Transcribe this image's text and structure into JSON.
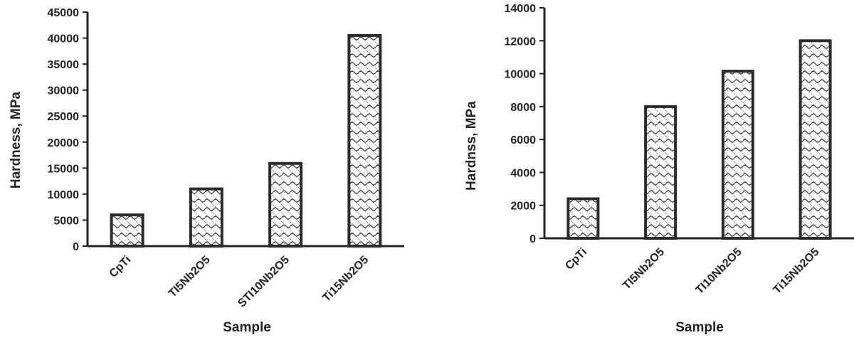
{
  "chart_data": [
    {
      "type": "bar",
      "title": "",
      "xlabel": "Sample",
      "ylabel": "Hardness, MPa",
      "categories": [
        "CpTi",
        "TI5Nb2O5",
        "STI10Nb2O5",
        "Ti15Nb2O5"
      ],
      "values": [
        6000,
        11000,
        15900,
        40500
      ],
      "ylim": [
        0,
        45000
      ],
      "yticks": [
        0,
        5000,
        10000,
        15000,
        20000,
        25000,
        30000,
        35000,
        40000,
        45000
      ],
      "grid": false,
      "legend": "none",
      "bar_fill": "hatched",
      "bar_color": "#2b2b2b"
    },
    {
      "type": "bar",
      "title": "",
      "xlabel": "Sample",
      "ylabel": "Hardnss, MPa",
      "categories": [
        "CpTi",
        "TI5Nb2O5",
        "TI10Nb2O5",
        "Ti15Nb2O5"
      ],
      "values": [
        2400,
        8000,
        10150,
        12000
      ],
      "ylim": [
        0,
        14000
      ],
      "yticks": [
        0,
        2000,
        4000,
        6000,
        8000,
        10000,
        12000,
        14000
      ],
      "grid": false,
      "legend": "none",
      "bar_fill": "hatched",
      "bar_color": "#2b2b2b"
    }
  ]
}
